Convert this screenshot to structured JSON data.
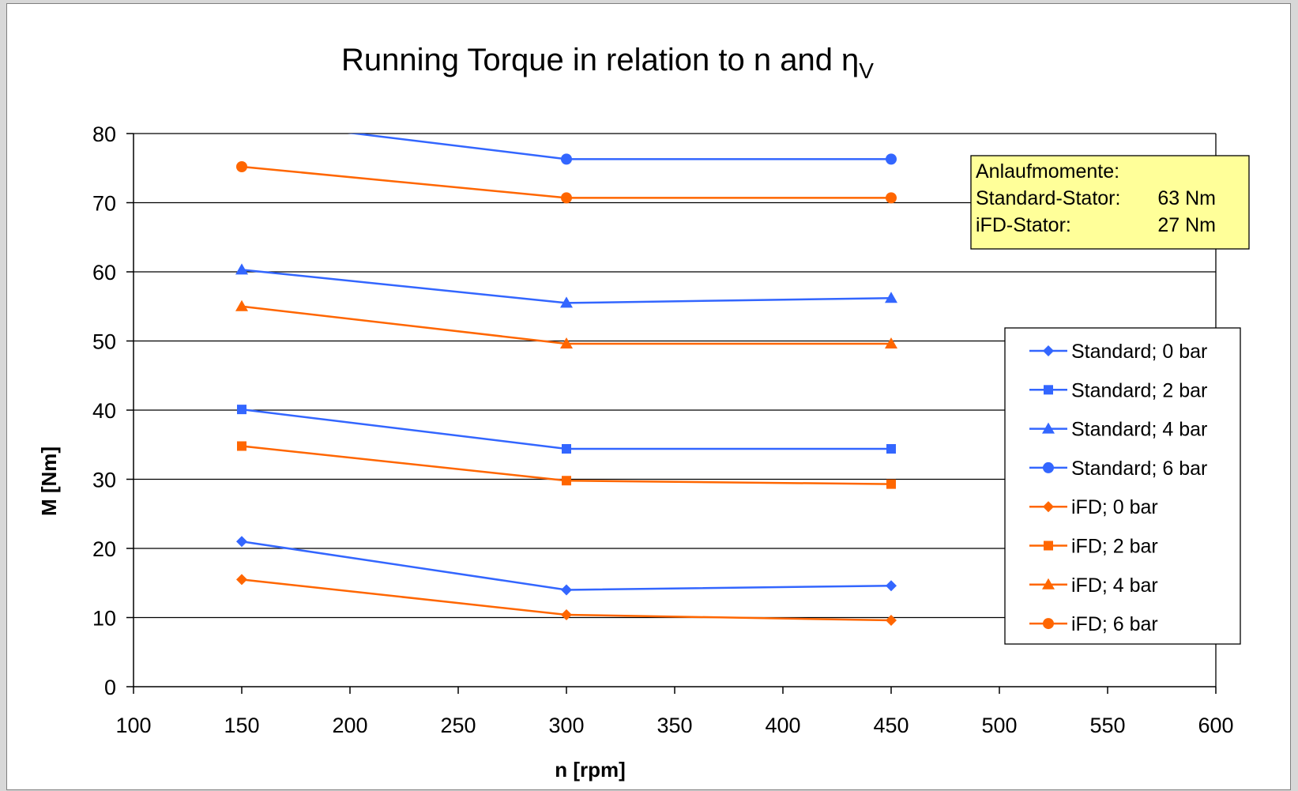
{
  "chart_data": {
    "type": "line",
    "title": "Running Torque in relation to n and η",
    "title_subscript": "V",
    "xlabel": "n [rpm]",
    "ylabel": "M [Nm]",
    "xlim": [
      100,
      600
    ],
    "ylim": [
      0,
      80
    ],
    "x_ticks": [
      100,
      150,
      200,
      250,
      300,
      350,
      400,
      450,
      500,
      550,
      600
    ],
    "y_ticks": [
      0,
      10,
      20,
      30,
      40,
      50,
      60,
      70,
      80
    ],
    "grid": "horizontal",
    "legend_position": "right",
    "x": [
      150,
      300,
      450
    ],
    "series": [
      {
        "name": "Standard; 0 bar",
        "values": [
          21,
          14,
          14.6
        ],
        "color": "#3366ff",
        "marker": "diamond"
      },
      {
        "name": "Standard; 2 bar",
        "values": [
          40.1,
          34.4,
          34.4
        ],
        "color": "#3366ff",
        "marker": "square"
      },
      {
        "name": "Standard; 4 bar",
        "values": [
          60.3,
          55.5,
          56.2
        ],
        "color": "#3366ff",
        "marker": "triangle"
      },
      {
        "name": "Standard; 6 bar",
        "values": [
          82,
          76.3,
          76.3
        ],
        "color": "#3366ff",
        "marker": "circle"
      },
      {
        "name": "iFD; 0 bar",
        "values": [
          15.5,
          10.4,
          9.6
        ],
        "color": "#ff6600",
        "marker": "diamond"
      },
      {
        "name": "iFD; 2 bar",
        "values": [
          34.8,
          29.8,
          29.3
        ],
        "color": "#ff6600",
        "marker": "square"
      },
      {
        "name": "iFD; 4 bar",
        "values": [
          55,
          49.6,
          49.6
        ],
        "color": "#ff6600",
        "marker": "triangle"
      },
      {
        "name": "iFD; 6 bar",
        "values": [
          75.2,
          70.7,
          70.7
        ],
        "color": "#ff6600",
        "marker": "circle"
      }
    ],
    "annotation": {
      "heading": "Anlaufmomente:",
      "rows": [
        {
          "label": "Standard-Stator:",
          "value": "63 Nm"
        },
        {
          "label": "iFD-Stator:",
          "value": "27 Nm"
        }
      ],
      "background": "#ffff99"
    }
  }
}
